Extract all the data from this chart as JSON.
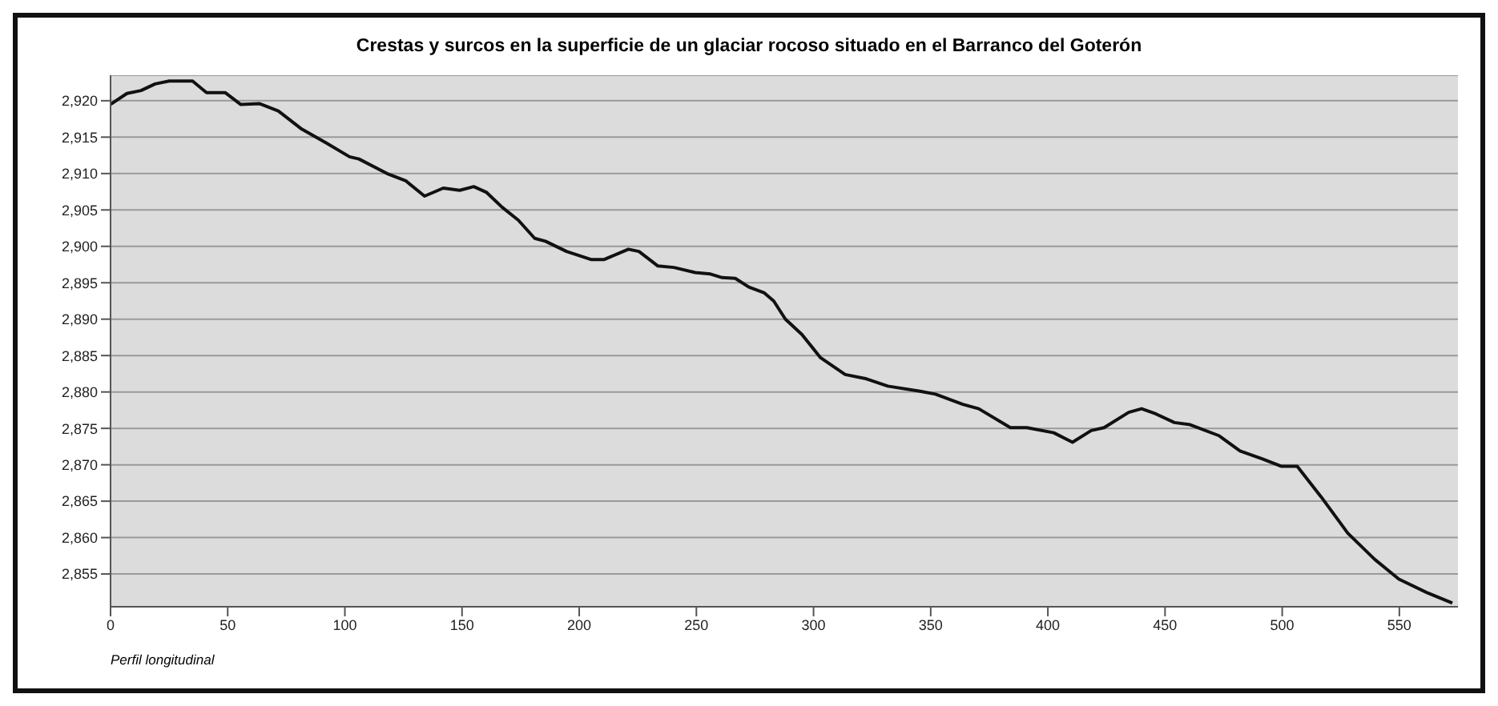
{
  "chart_data": {
    "type": "line",
    "title": "Crestas y surcos en la superficie de un glaciar rocoso situado en el Barranco del Goterón",
    "xlabel": "Perfil longitudinal",
    "x": [
      0,
      7,
      13,
      19,
      25,
      35,
      41,
      49,
      55.5,
      63.5,
      71.6,
      81.6,
      92,
      102,
      106,
      118,
      126,
      134,
      142,
      149,
      155,
      160.5,
      167,
      174,
      181,
      185.6,
      194.6,
      205,
      210.7,
      221,
      225.5,
      233.6,
      240.4,
      249.5,
      256,
      261,
      266.6,
      272.4,
      279,
      283,
      288,
      295,
      303,
      313.5,
      322.6,
      331.7,
      345.4,
      352,
      363.7,
      370.5,
      384,
      391,
      402.5,
      410.5,
      418.5,
      424,
      434.5,
      440,
      446,
      454,
      460.7,
      473,
      482,
      491.6,
      499.5,
      506.4,
      516.6,
      528,
      539.5,
      549.8,
      562,
      572.6
    ],
    "series": [
      {
        "color": "#111111",
        "values": [
          2919.5,
          2921,
          2921.4,
          2922.3,
          2922.7,
          2922.7,
          2921.1,
          2921.1,
          2919.5,
          2919.6,
          2918.6,
          2916.1,
          2914.2,
          2912.3,
          2912,
          2910,
          2909,
          2906.9,
          2908,
          2907.7,
          2908.2,
          2907.4,
          2905.4,
          2903.6,
          2901.1,
          2900.7,
          2899.3,
          2898.2,
          2898.2,
          2899.6,
          2899.3,
          2897.3,
          2897.1,
          2896.4,
          2896.2,
          2895.7,
          2895.6,
          2894.4,
          2893.6,
          2892.5,
          2890,
          2887.9,
          2884.7,
          2882.4,
          2881.8,
          2880.8,
          2880.1,
          2879.7,
          2878.3,
          2877.7,
          2875.1,
          2875.1,
          2874.4,
          2873.1,
          2874.7,
          2875.1,
          2877.2,
          2877.7,
          2877,
          2875.8,
          2875.5,
          2874,
          2871.9,
          2870.8,
          2869.8,
          2869.8,
          2865.6,
          2860.6,
          2857,
          2854.3,
          2852.4,
          2851
        ]
      }
    ],
    "xlim": [
      0,
      575
    ],
    "xticks": [
      0,
      50,
      100,
      150,
      200,
      250,
      300,
      350,
      400,
      450,
      500,
      550
    ],
    "ylim": [
      2850.5,
      2923.5
    ],
    "yticks": [
      {
        "value": 2855,
        "label": "2,855"
      },
      {
        "value": 2860,
        "label": "2,860"
      },
      {
        "value": 2865,
        "label": "2,865"
      },
      {
        "value": 2870,
        "label": "2,870"
      },
      {
        "value": 2875,
        "label": "2,875"
      },
      {
        "value": 2880,
        "label": "2,880"
      },
      {
        "value": 2885,
        "label": "2,885"
      },
      {
        "value": 2890,
        "label": "2,890"
      },
      {
        "value": 2895,
        "label": "2,895"
      },
      {
        "value": 2900,
        "label": "2,900"
      },
      {
        "value": 2905,
        "label": "2,905"
      },
      {
        "value": 2910,
        "label": "2,910"
      },
      {
        "value": 2915,
        "label": "2,915"
      },
      {
        "value": 2920,
        "label": "2,920"
      }
    ],
    "grid": "y",
    "legend": false,
    "marker": "none",
    "line_style": "solid"
  }
}
